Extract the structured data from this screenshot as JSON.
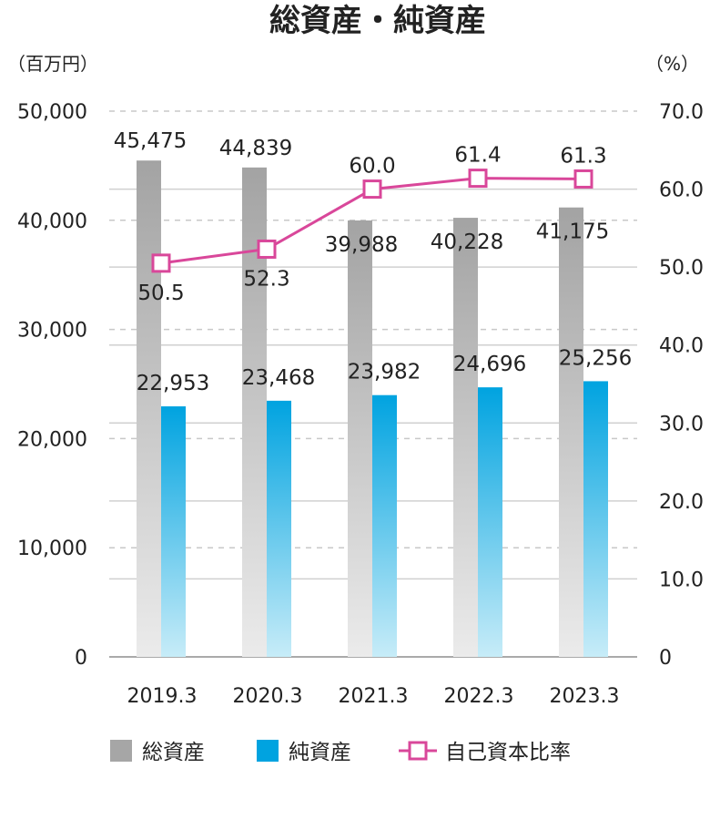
{
  "chart_data": {
    "type": "bar",
    "title": "総資産・純資産",
    "left_unit": "（百万円）",
    "right_unit": "（%）",
    "categories": [
      "2019.3",
      "2020.3",
      "2021.3",
      "2022.3",
      "2023.3"
    ],
    "ylim": [
      0,
      50000
    ],
    "y_ticks": [
      "0",
      "10,000",
      "20,000",
      "30,000",
      "40,000",
      "50,000"
    ],
    "y2lim": [
      0,
      70
    ],
    "y2_ticks": [
      "0",
      "10.0",
      "20.0",
      "30.0",
      "40.0",
      "50.0",
      "60.0",
      "70.0"
    ],
    "grid": true,
    "legend_position": "bottom",
    "series": [
      {
        "name": "総資産",
        "kind": "bar",
        "axis": "left",
        "color": "#a6a6a6",
        "values": [
          45475,
          44839,
          39988,
          40228,
          41175
        ],
        "labels": [
          "45,475",
          "44,839",
          "39,988",
          "40,228",
          "41,175"
        ]
      },
      {
        "name": "純資産",
        "kind": "bar",
        "axis": "left",
        "color": "#00a3e0",
        "values": [
          22953,
          23468,
          23982,
          24696,
          25256
        ],
        "labels": [
          "22,953",
          "23,468",
          "23,982",
          "24,696",
          "25,256"
        ]
      },
      {
        "name": "自己資本比率",
        "kind": "line",
        "axis": "right",
        "color": "#d9479a",
        "values": [
          50.5,
          52.3,
          60.0,
          61.4,
          61.3
        ],
        "labels": [
          "50.5",
          "52.3",
          "60.0",
          "61.4",
          "61.3"
        ]
      }
    ]
  }
}
